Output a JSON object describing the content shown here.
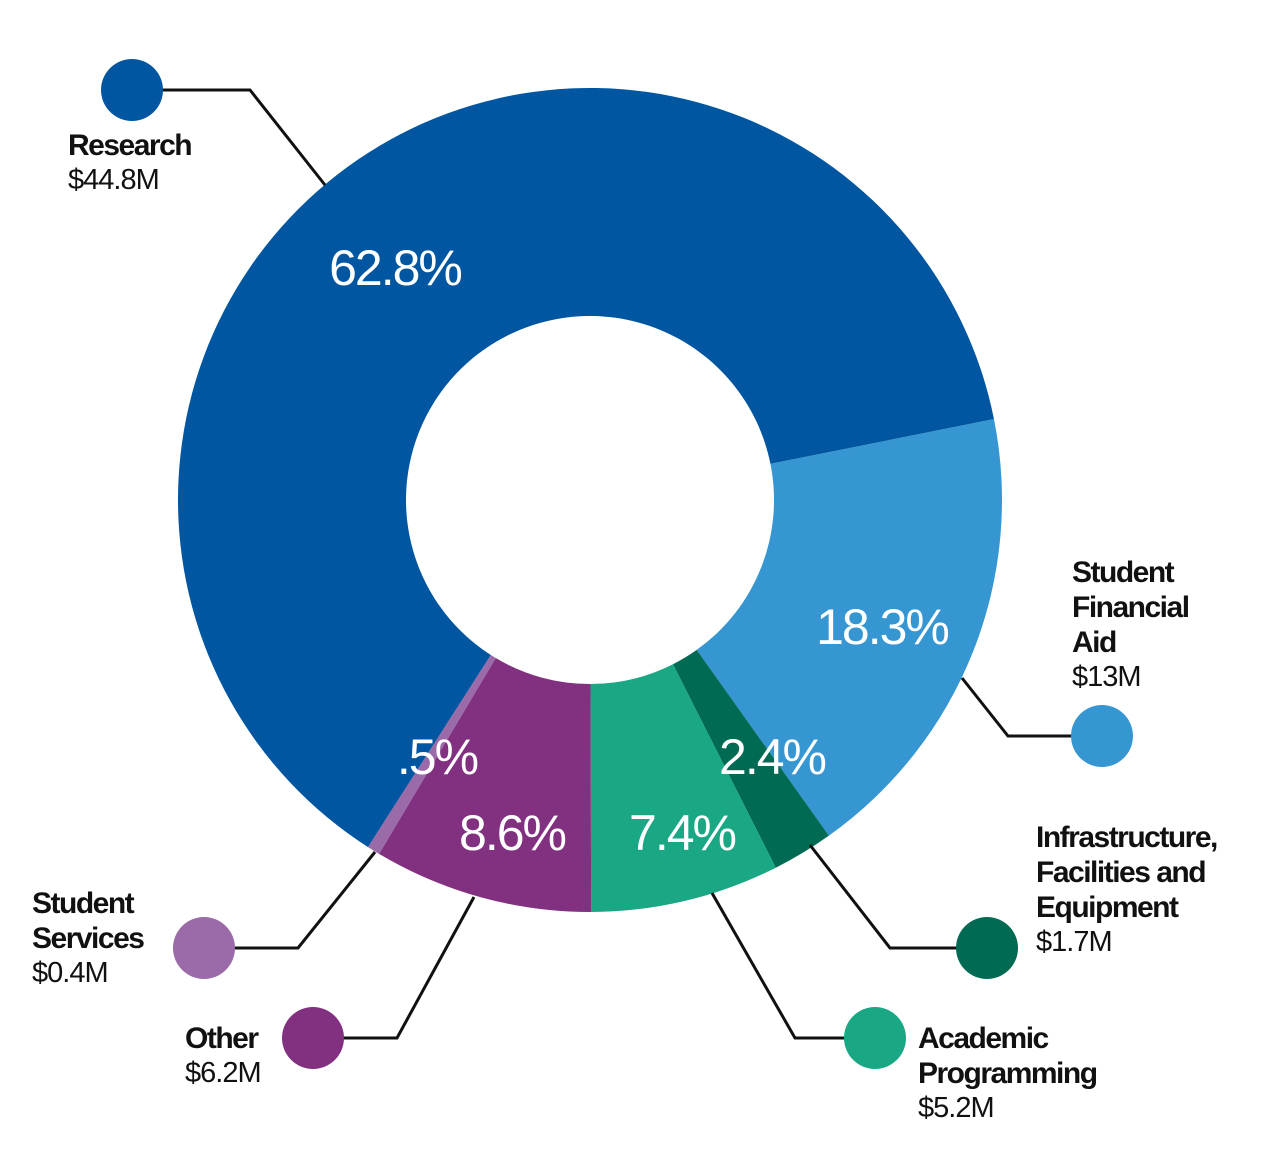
{
  "chart_data": {
    "type": "donut",
    "categories": [
      "Research",
      "Student Financial Aid",
      "Infrastructure, Facilities and Equipment",
      "Academic Programming",
      "Other",
      "Student Services"
    ],
    "values": [
      62.8,
      18.3,
      2.4,
      7.4,
      8.6,
      0.5
    ],
    "value_labels": [
      "62.8%",
      "18.3%",
      "2.4%",
      "7.4%",
      "8.6%",
      ".5%"
    ],
    "amounts": [
      44.8,
      13,
      1.7,
      5.2,
      6.2,
      0.4
    ],
    "amount_labels": [
      "$44.8M",
      "$13M",
      "$1.7M",
      "$5.2M",
      "$6.2M",
      "$0.4M"
    ],
    "colors": [
      "#0056a0",
      "#3596d2",
      "#006a52",
      "#1aa784",
      "#823180",
      "#9b6aa8"
    ]
  }
}
